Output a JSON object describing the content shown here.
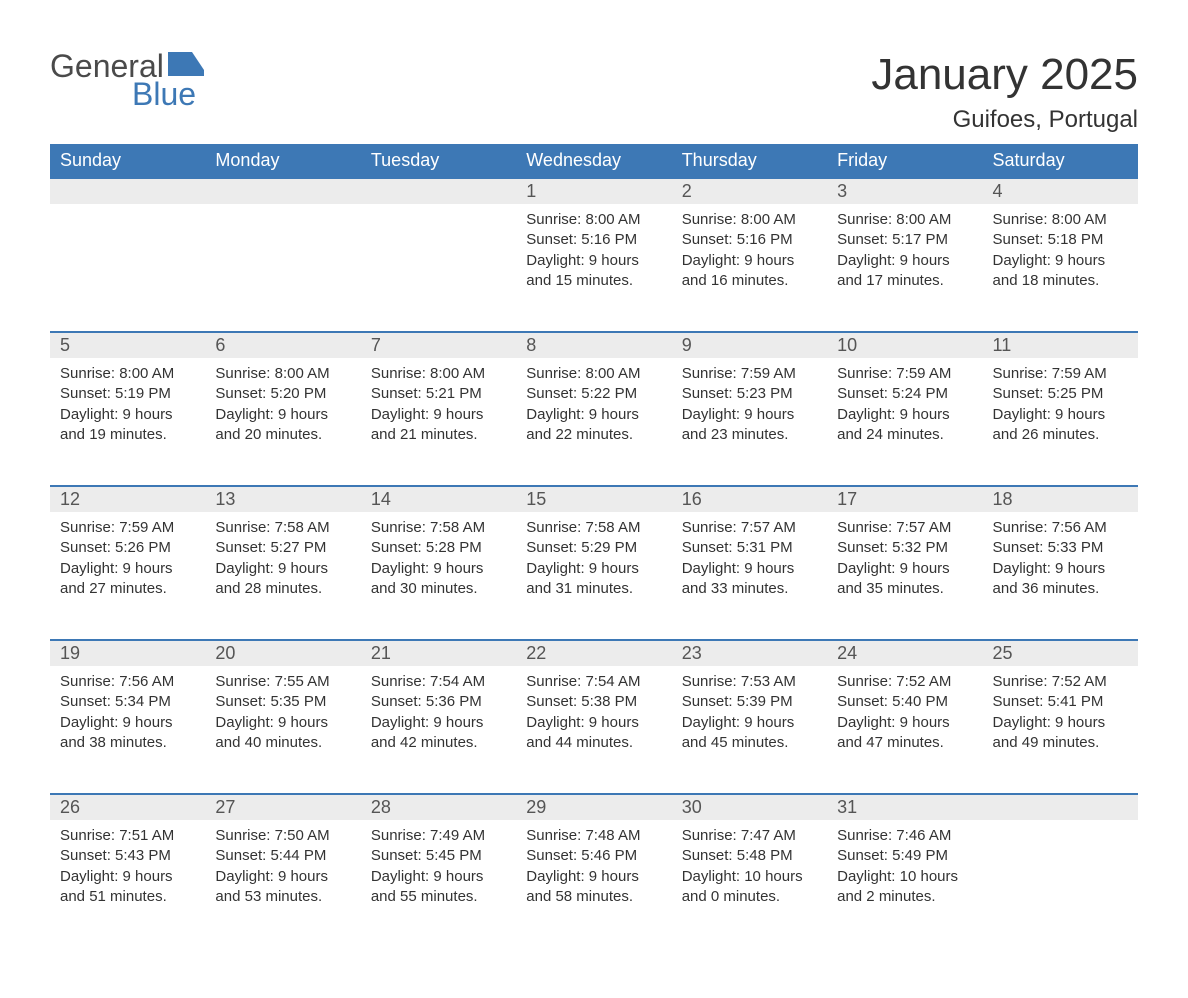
{
  "brand": {
    "text_general": "General",
    "text_blue": "Blue",
    "logo_color_primary": "#3d78b5",
    "logo_color_grey": "#4a4a4a"
  },
  "title": "January 2025",
  "location": "Guifoes, Portugal",
  "colors": {
    "header_bg": "#3d78b5",
    "header_text": "#ffffff",
    "daynum_bg": "#ececec",
    "row_border": "#3d78b5",
    "body_text": "#333333",
    "page_bg": "#ffffff"
  },
  "fonts": {
    "title_size_pt": 33,
    "location_size_pt": 18,
    "header_size_pt": 14,
    "body_size_pt": 11
  },
  "weekdays": [
    "Sunday",
    "Monday",
    "Tuesday",
    "Wednesday",
    "Thursday",
    "Friday",
    "Saturday"
  ],
  "weeks": [
    [
      null,
      null,
      null,
      {
        "n": "1",
        "sunrise": "Sunrise: 8:00 AM",
        "sunset": "Sunset: 5:16 PM",
        "day1": "Daylight: 9 hours",
        "day2": "and 15 minutes."
      },
      {
        "n": "2",
        "sunrise": "Sunrise: 8:00 AM",
        "sunset": "Sunset: 5:16 PM",
        "day1": "Daylight: 9 hours",
        "day2": "and 16 minutes."
      },
      {
        "n": "3",
        "sunrise": "Sunrise: 8:00 AM",
        "sunset": "Sunset: 5:17 PM",
        "day1": "Daylight: 9 hours",
        "day2": "and 17 minutes."
      },
      {
        "n": "4",
        "sunrise": "Sunrise: 8:00 AM",
        "sunset": "Sunset: 5:18 PM",
        "day1": "Daylight: 9 hours",
        "day2": "and 18 minutes."
      }
    ],
    [
      {
        "n": "5",
        "sunrise": "Sunrise: 8:00 AM",
        "sunset": "Sunset: 5:19 PM",
        "day1": "Daylight: 9 hours",
        "day2": "and 19 minutes."
      },
      {
        "n": "6",
        "sunrise": "Sunrise: 8:00 AM",
        "sunset": "Sunset: 5:20 PM",
        "day1": "Daylight: 9 hours",
        "day2": "and 20 minutes."
      },
      {
        "n": "7",
        "sunrise": "Sunrise: 8:00 AM",
        "sunset": "Sunset: 5:21 PM",
        "day1": "Daylight: 9 hours",
        "day2": "and 21 minutes."
      },
      {
        "n": "8",
        "sunrise": "Sunrise: 8:00 AM",
        "sunset": "Sunset: 5:22 PM",
        "day1": "Daylight: 9 hours",
        "day2": "and 22 minutes."
      },
      {
        "n": "9",
        "sunrise": "Sunrise: 7:59 AM",
        "sunset": "Sunset: 5:23 PM",
        "day1": "Daylight: 9 hours",
        "day2": "and 23 minutes."
      },
      {
        "n": "10",
        "sunrise": "Sunrise: 7:59 AM",
        "sunset": "Sunset: 5:24 PM",
        "day1": "Daylight: 9 hours",
        "day2": "and 24 minutes."
      },
      {
        "n": "11",
        "sunrise": "Sunrise: 7:59 AM",
        "sunset": "Sunset: 5:25 PM",
        "day1": "Daylight: 9 hours",
        "day2": "and 26 minutes."
      }
    ],
    [
      {
        "n": "12",
        "sunrise": "Sunrise: 7:59 AM",
        "sunset": "Sunset: 5:26 PM",
        "day1": "Daylight: 9 hours",
        "day2": "and 27 minutes."
      },
      {
        "n": "13",
        "sunrise": "Sunrise: 7:58 AM",
        "sunset": "Sunset: 5:27 PM",
        "day1": "Daylight: 9 hours",
        "day2": "and 28 minutes."
      },
      {
        "n": "14",
        "sunrise": "Sunrise: 7:58 AM",
        "sunset": "Sunset: 5:28 PM",
        "day1": "Daylight: 9 hours",
        "day2": "and 30 minutes."
      },
      {
        "n": "15",
        "sunrise": "Sunrise: 7:58 AM",
        "sunset": "Sunset: 5:29 PM",
        "day1": "Daylight: 9 hours",
        "day2": "and 31 minutes."
      },
      {
        "n": "16",
        "sunrise": "Sunrise: 7:57 AM",
        "sunset": "Sunset: 5:31 PM",
        "day1": "Daylight: 9 hours",
        "day2": "and 33 minutes."
      },
      {
        "n": "17",
        "sunrise": "Sunrise: 7:57 AM",
        "sunset": "Sunset: 5:32 PM",
        "day1": "Daylight: 9 hours",
        "day2": "and 35 minutes."
      },
      {
        "n": "18",
        "sunrise": "Sunrise: 7:56 AM",
        "sunset": "Sunset: 5:33 PM",
        "day1": "Daylight: 9 hours",
        "day2": "and 36 minutes."
      }
    ],
    [
      {
        "n": "19",
        "sunrise": "Sunrise: 7:56 AM",
        "sunset": "Sunset: 5:34 PM",
        "day1": "Daylight: 9 hours",
        "day2": "and 38 minutes."
      },
      {
        "n": "20",
        "sunrise": "Sunrise: 7:55 AM",
        "sunset": "Sunset: 5:35 PM",
        "day1": "Daylight: 9 hours",
        "day2": "and 40 minutes."
      },
      {
        "n": "21",
        "sunrise": "Sunrise: 7:54 AM",
        "sunset": "Sunset: 5:36 PM",
        "day1": "Daylight: 9 hours",
        "day2": "and 42 minutes."
      },
      {
        "n": "22",
        "sunrise": "Sunrise: 7:54 AM",
        "sunset": "Sunset: 5:38 PM",
        "day1": "Daylight: 9 hours",
        "day2": "and 44 minutes."
      },
      {
        "n": "23",
        "sunrise": "Sunrise: 7:53 AM",
        "sunset": "Sunset: 5:39 PM",
        "day1": "Daylight: 9 hours",
        "day2": "and 45 minutes."
      },
      {
        "n": "24",
        "sunrise": "Sunrise: 7:52 AM",
        "sunset": "Sunset: 5:40 PM",
        "day1": "Daylight: 9 hours",
        "day2": "and 47 minutes."
      },
      {
        "n": "25",
        "sunrise": "Sunrise: 7:52 AM",
        "sunset": "Sunset: 5:41 PM",
        "day1": "Daylight: 9 hours",
        "day2": "and 49 minutes."
      }
    ],
    [
      {
        "n": "26",
        "sunrise": "Sunrise: 7:51 AM",
        "sunset": "Sunset: 5:43 PM",
        "day1": "Daylight: 9 hours",
        "day2": "and 51 minutes."
      },
      {
        "n": "27",
        "sunrise": "Sunrise: 7:50 AM",
        "sunset": "Sunset: 5:44 PM",
        "day1": "Daylight: 9 hours",
        "day2": "and 53 minutes."
      },
      {
        "n": "28",
        "sunrise": "Sunrise: 7:49 AM",
        "sunset": "Sunset: 5:45 PM",
        "day1": "Daylight: 9 hours",
        "day2": "and 55 minutes."
      },
      {
        "n": "29",
        "sunrise": "Sunrise: 7:48 AM",
        "sunset": "Sunset: 5:46 PM",
        "day1": "Daylight: 9 hours",
        "day2": "and 58 minutes."
      },
      {
        "n": "30",
        "sunrise": "Sunrise: 7:47 AM",
        "sunset": "Sunset: 5:48 PM",
        "day1": "Daylight: 10 hours",
        "day2": "and 0 minutes."
      },
      {
        "n": "31",
        "sunrise": "Sunrise: 7:46 AM",
        "sunset": "Sunset: 5:49 PM",
        "day1": "Daylight: 10 hours",
        "day2": "and 2 minutes."
      },
      null
    ]
  ]
}
